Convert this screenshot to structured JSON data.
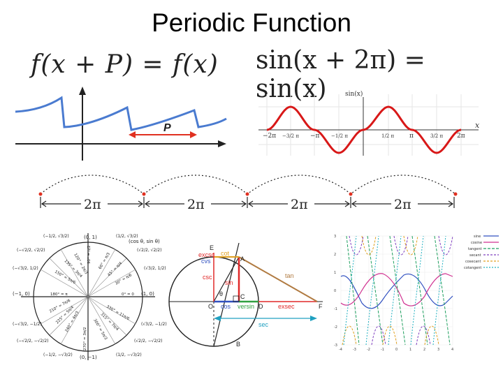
{
  "slide": {
    "title": "Periodic Function",
    "equation_general": "f(x + P) = f(x)",
    "equation_sine": "sin(x + 2π) = sin(x)"
  },
  "periodic_plot": {
    "period_label": "P",
    "curve_color": "#4a7bd0",
    "arrow_color": "#e03020"
  },
  "sine_plot": {
    "ylabel": "sin(x)",
    "xlabel": "x",
    "tick_labels": [
      "−2π",
      "−3/2 π",
      "−π",
      "−1/2 π",
      "1/2 π",
      "π",
      "3/2 π",
      "2π"
    ],
    "curve_color": "#d81818"
  },
  "period_strip": {
    "labels": [
      "2π",
      "2π",
      "2π",
      "2π"
    ]
  },
  "unit_circle": {
    "angles": [
      "0° = 0",
      "30° = π/6",
      "45° = π/4",
      "60° = π/3",
      "90° = π/2",
      "120° = 2π/3",
      "135° = 3π/4",
      "150° = 5π/6",
      "180° = π",
      "210° = 7π/6",
      "225° = 5π/4",
      "240° = 4π/3",
      "270° = 3π/2",
      "300° = 5π/3",
      "315° = 7π/4",
      "330° = 11π/6"
    ],
    "points": [
      "(1, 0)",
      "(0, 1)",
      "(−1, 0)",
      "(0, −1)",
      "(cos θ, sin θ)"
    ]
  },
  "geometry": {
    "labels": [
      "E",
      "excsc",
      "cvs",
      "cot",
      "A",
      "csc",
      "sin",
      "tan",
      "θ",
      "C",
      "O",
      "cos",
      "versin",
      "D",
      "exsec",
      "F",
      "sec",
      "B"
    ]
  },
  "trig_chart": {
    "legend": [
      "sine",
      "cosine",
      "tangent",
      "secant",
      "cosecant",
      "cotangent"
    ],
    "colors": [
      "#3050c0",
      "#d03090",
      "#20a060",
      "#8040c0",
      "#e0a020",
      "#20b0c0"
    ],
    "y_ticks": [
      "3",
      "2",
      "1",
      "0",
      "-1",
      "-2",
      "-3"
    ],
    "x_ticks": [
      "-4",
      "-3",
      "-2",
      "-1",
      "0",
      "1",
      "2",
      "3",
      "4"
    ]
  }
}
